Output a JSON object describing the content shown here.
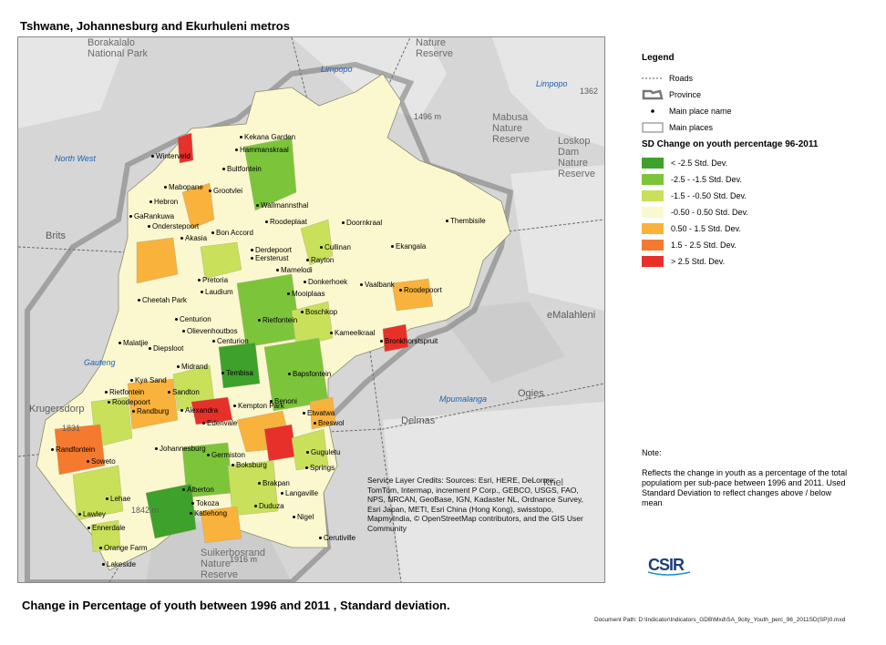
{
  "top_title": "Tshwane, Johannesburg and Ekurhuleni metros",
  "bottom_title": "Change in Percentage of youth between 1996 and 2011 , Standard deviation.",
  "doc_path": "Document Path: D:\\Indicator\\Indicators_GDB\\Mxd\\SA_9city_Youth_perc_96_2011SD(SP)0.mxd",
  "legend": {
    "title": "Legend",
    "items": [
      {
        "label": "Roads",
        "symbol": "dashed-line"
      },
      {
        "label": "Province",
        "symbol": "province-outline"
      },
      {
        "label": "Main place name",
        "symbol": "dot"
      },
      {
        "label": "Main places",
        "symbol": "box"
      }
    ],
    "sd_title": "SD Change on youth percentage 96-2011",
    "classes": [
      {
        "label": "< -2.5 Std. Dev.",
        "color": "#3ea12b"
      },
      {
        "label": "-2.5 - -1.5 Std. Dev.",
        "color": "#7cc53a"
      },
      {
        "label": "-1.5 - -0.50 Std. Dev.",
        "color": "#c8e05a"
      },
      {
        "label": "-0.50 - 0.50 Std. Dev.",
        "color": "#fbf8cf"
      },
      {
        "label": "0.50 - 1.5 Std. Dev.",
        "color": "#f9b23b"
      },
      {
        "label": "1.5 - 2.5 Std. Dev.",
        "color": "#f57a2e"
      },
      {
        "label": "> 2.5 Std. Dev.",
        "color": "#e8302a"
      }
    ]
  },
  "note": {
    "title": "Note:",
    "body": "Reflects the change in youth as a percentage of the total populatiom per sub-pace between 1996 and 2011. Used Standard Deviation to reflect changes above / below mean"
  },
  "credits": "Service Layer Credits: Sources: Esri, HERE, DeLorme, TomTom, Intermap, increment P Corp., GEBCO, USGS, FAO, NPS, NRCAN, GeoBase, IGN, Kadaster NL, Ordnance Survey, Esri Japan, METI, Esri China (Hong Kong), swisstopo, MapmyIndia, © OpenStreetMap contributors, and the GIS User Community",
  "logo_text": "CSIR",
  "basemap_labels": {
    "reserves": [
      "Borakalalo National Park",
      "Mabusa Nature Reserve",
      "Loskop Dam Nature Reserve",
      "Suikerbosrand Nature Reserve",
      "Nature Reserve"
    ],
    "regions": [
      "North West",
      "Limpopo",
      "Limpopo",
      "Gauteng",
      "Mpumalanga"
    ],
    "towns": [
      "Brits",
      "Krugersdorp",
      "eMalahleni",
      "Ogies",
      "Delmas",
      "Kriel"
    ],
    "elevations": [
      "1496 m",
      "1362",
      "1842 m",
      "1916 m",
      "1831"
    ]
  },
  "places": [
    "Kekana Garden",
    "Hammanskraal",
    "Winterveld",
    "Bultfontein",
    "Mabopane",
    "Grootvlei",
    "Wallmannsthal",
    "Hebron",
    "GaRankuwa",
    "Onderstepoort",
    "Roodeplaat",
    "Doornkraal",
    "Thembisile",
    "Akasia",
    "Bon Accord",
    "Cullinan",
    "Ekangala",
    "Derdepoort",
    "Eersterust",
    "Rayton",
    "Mamelodi",
    "Pretoria",
    "Donkerhoek",
    "Vaalbank",
    "Roodepoort",
    "Laudium",
    "Mooiplaas",
    "Cheetah Park",
    "Centurion",
    "Boschkop",
    "Rietfontein",
    "Olievenhoutbos",
    "Kameelkraal",
    "Bronkhorstspruit",
    "Malatjie",
    "Centurion",
    "Diepsloot",
    "Midrand",
    "Bapsfontein",
    "Kya Sand",
    "Tembisa",
    "Rietfontein",
    "Sandton",
    "Roodepoort",
    "Kempton Park",
    "Alexandra",
    "Randburg",
    "Edenvale",
    "Etwatwa",
    "Benoni",
    "Breswol",
    "Randfontein",
    "Johannesburg",
    "Guguletu",
    "Soweto",
    "Germiston",
    "Springs",
    "Boksburg",
    "Brakpan",
    "Alberton",
    "Lehae",
    "Langaville",
    "Tokoza",
    "Duduza",
    "Katlehong",
    "Lawley",
    "Ennerdale",
    "Nigel",
    "Orange Farm",
    "Cerutiville",
    "Lakeside"
  ]
}
